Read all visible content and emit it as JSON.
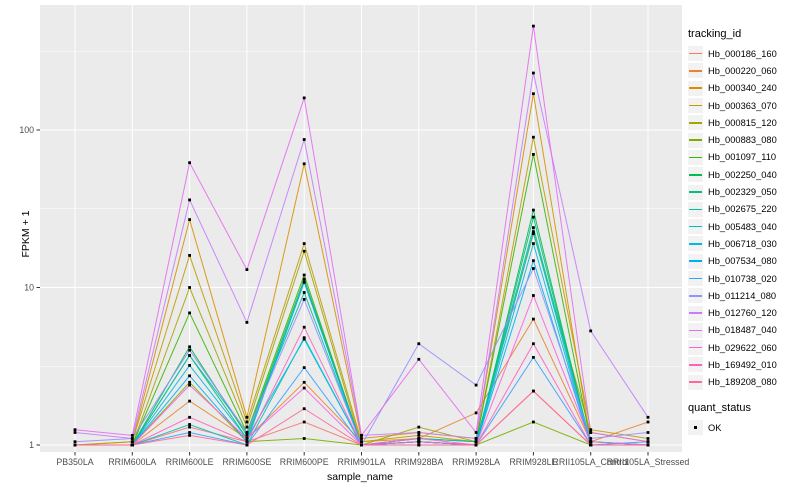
{
  "figure": {
    "background": "#FFFFFF",
    "panel_background": "#EBEBEB",
    "grid_color": "#FFFFFF",
    "tick_color": "#333333",
    "tick_label_color": "#4D4D4D",
    "point_color": "#000000"
  },
  "chart_data": {
    "type": "line",
    "title": "",
    "xlabel": "sample_name",
    "ylabel": "FPKM + 1",
    "y_scale": "log10",
    "ylim": [
      0.9,
      600
    ],
    "y_major_ticks": [
      1,
      10,
      100
    ],
    "y_tick_labels": [
      "1",
      "10",
      "100"
    ],
    "y_minor_ticks": [
      3.162,
      31.62,
      316.2
    ],
    "grid": true,
    "legend_position": "right",
    "legend_title": "tracking_id",
    "quant_legend_title": "quant_status",
    "quant_legend_items": [
      "OK"
    ],
    "categories": [
      "PB350LA",
      "RRIM600LA",
      "RRIM600LE",
      "RRIM600SE",
      "RRIM600PE",
      "RRIM901LA",
      "RRIM928BA",
      "RRIM928LA",
      "RRIM928LE",
      "RRII105LA_Control",
      "RRII105LA_Stressed"
    ],
    "series": [
      {
        "name": "Hb_000186_160",
        "color": "#F8766D",
        "values": [
          1.0,
          1.0,
          1.3,
          1.05,
          1.4,
          1.0,
          1.05,
          1.0,
          2.2,
          1.0,
          1.0
        ]
      },
      {
        "name": "Hb_000220_060",
        "color": "#EA8331",
        "values": [
          1.0,
          1.0,
          1.9,
          1.1,
          2.5,
          1.05,
          1.1,
          1.6,
          6.3,
          1.05,
          1.4
        ]
      },
      {
        "name": "Hb_000340_240",
        "color": "#D89000",
        "values": [
          1.0,
          1.05,
          27,
          1.5,
          61,
          1.1,
          1.2,
          1.1,
          170,
          1.05,
          1.0
        ]
      },
      {
        "name": "Hb_000363_070",
        "color": "#C09B00",
        "values": [
          1.0,
          1.05,
          16,
          1.4,
          19,
          1.05,
          1.15,
          1.05,
          90,
          1.25,
          1.1
        ]
      },
      {
        "name": "Hb_000815_120",
        "color": "#A3A500",
        "values": [
          1.0,
          1.0,
          10,
          1.3,
          17,
          1.0,
          1.3,
          1.05,
          22,
          1.2,
          1.05
        ]
      },
      {
        "name": "Hb_000883_080",
        "color": "#7CAE00",
        "values": [
          1.0,
          1.0,
          2.5,
          1.05,
          1.1,
          1.0,
          1.05,
          1.0,
          1.4,
          1.0,
          1.0
        ]
      },
      {
        "name": "Hb_001097_110",
        "color": "#39B600",
        "values": [
          1.0,
          1.0,
          6.9,
          1.2,
          12,
          1.0,
          1.1,
          1.05,
          70,
          1.05,
          1.0
        ]
      },
      {
        "name": "Hb_002250_040",
        "color": "#00BB4E",
        "values": [
          1.0,
          1.0,
          4.2,
          1.15,
          11.3,
          1.0,
          1.05,
          1.0,
          31,
          1.0,
          1.0
        ]
      },
      {
        "name": "Hb_002329_050",
        "color": "#00BF7D",
        "values": [
          1.0,
          1.0,
          3.7,
          1.1,
          10.8,
          1.0,
          1.05,
          1.0,
          28,
          1.0,
          1.0
        ]
      },
      {
        "name": "Hb_002675_220",
        "color": "#00C1A3",
        "values": [
          1.0,
          1.0,
          3.7,
          1.2,
          9.3,
          1.0,
          1.1,
          1.05,
          24,
          1.05,
          1.0
        ]
      },
      {
        "name": "Hb_005483_040",
        "color": "#00BFC4",
        "values": [
          1.0,
          1.0,
          1.35,
          1.0,
          4.8,
          1.0,
          1.0,
          1.0,
          22.6,
          1.0,
          1.0
        ]
      },
      {
        "name": "Hb_006718_030",
        "color": "#00BAE0",
        "values": [
          1.0,
          1.0,
          3.2,
          1.1,
          4.7,
          1.0,
          1.05,
          1.0,
          19,
          1.0,
          1.0
        ]
      },
      {
        "name": "Hb_007534_080",
        "color": "#00B0F6",
        "values": [
          1.0,
          1.0,
          2.75,
          1.05,
          10.8,
          1.0,
          1.05,
          1.0,
          14.8,
          1.0,
          1.0
        ]
      },
      {
        "name": "Hb_010738_020",
        "color": "#35A2FF",
        "values": [
          1.0,
          1.0,
          1.2,
          1.0,
          3.1,
          1.0,
          1.0,
          1.0,
          3.6,
          1.0,
          1.05
        ]
      },
      {
        "name": "Hb_011214_080",
        "color": "#9590FF",
        "values": [
          1.05,
          1.1,
          4.0,
          1.2,
          8.4,
          1.0,
          4.4,
          2.4,
          13.2,
          1.1,
          1.2
        ]
      },
      {
        "name": "Hb_012760_120",
        "color": "#C77CFF",
        "values": [
          1.2,
          1.1,
          36,
          6.0,
          87,
          1.15,
          1.2,
          1.1,
          230,
          5.3,
          1.5
        ]
      },
      {
        "name": "Hb_018487_040",
        "color": "#E76BF3",
        "values": [
          1.25,
          1.15,
          62,
          13,
          160,
          1.15,
          3.5,
          1.2,
          457,
          1.2,
          1.05
        ]
      },
      {
        "name": "Hb_029622_060",
        "color": "#FA62DB",
        "values": [
          1.0,
          1.0,
          2.4,
          1.1,
          2.3,
          1.0,
          1.1,
          1.0,
          8.9,
          1.05,
          1.0
        ]
      },
      {
        "name": "Hb_169492_010",
        "color": "#FF62BC",
        "values": [
          1.0,
          1.0,
          1.5,
          1.05,
          5.6,
          1.0,
          1.05,
          1.0,
          4.4,
          1.0,
          1.0
        ]
      },
      {
        "name": "Hb_189208_080",
        "color": "#FF6A98",
        "values": [
          1.0,
          1.0,
          1.15,
          1.0,
          1.7,
          1.0,
          1.0,
          1.0,
          2.2,
          1.0,
          1.0
        ]
      }
    ]
  }
}
